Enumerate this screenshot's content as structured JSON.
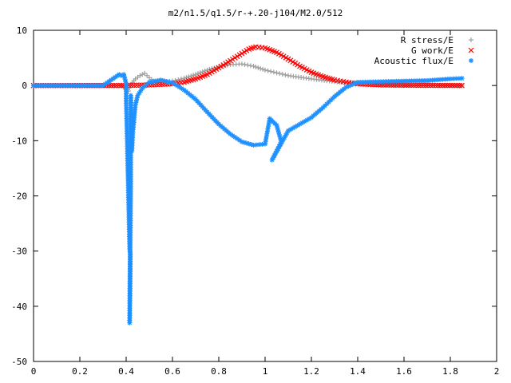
{
  "chart_data": {
    "type": "scatter",
    "title": "m2/n1.5/q1.5/r-+.20-j104/M2.0/512",
    "xlabel": "",
    "ylabel": "",
    "xlim": [
      0,
      2
    ],
    "ylim": [
      -50,
      10
    ],
    "x_ticks": [
      "0",
      "0.2",
      "0.4",
      "0.6",
      "0.8",
      "1",
      "1.2",
      "1.4",
      "1.6",
      "1.8",
      "2"
    ],
    "y_ticks": [
      "10",
      "0",
      "-10",
      "-20",
      "-30",
      "-40",
      "-50"
    ],
    "grid": false,
    "legend_position": "top-right",
    "series": [
      {
        "name": "R stress/E",
        "color": "#a0a0a0",
        "marker": "plus",
        "points": [
          [
            0.0,
            0.0
          ],
          [
            0.35,
            0.0
          ],
          [
            0.38,
            0.0
          ],
          [
            0.39,
            -0.4
          ],
          [
            0.4,
            -0.8
          ],
          [
            0.41,
            -1.0
          ],
          [
            0.42,
            0.2
          ],
          [
            0.44,
            1.2
          ],
          [
            0.46,
            1.8
          ],
          [
            0.48,
            2.2
          ],
          [
            0.5,
            1.4
          ],
          [
            0.52,
            0.8
          ],
          [
            0.55,
            0.6
          ],
          [
            0.6,
            0.8
          ],
          [
            0.65,
            1.3
          ],
          [
            0.7,
            2.0
          ],
          [
            0.75,
            2.8
          ],
          [
            0.8,
            3.4
          ],
          [
            0.85,
            3.8
          ],
          [
            0.9,
            3.9
          ],
          [
            0.95,
            3.5
          ],
          [
            1.0,
            2.8
          ],
          [
            1.05,
            2.3
          ],
          [
            1.1,
            1.8
          ],
          [
            1.2,
            1.2
          ],
          [
            1.3,
            0.7
          ],
          [
            1.4,
            0.4
          ],
          [
            1.5,
            0.2
          ],
          [
            1.6,
            0.1
          ],
          [
            1.7,
            0.05
          ],
          [
            1.85,
            0.0
          ]
        ]
      },
      {
        "name": "G work/E",
        "color": "#ff0000",
        "marker": "cross",
        "points": [
          [
            0.0,
            0.0
          ],
          [
            0.4,
            0.0
          ],
          [
            0.5,
            0.1
          ],
          [
            0.6,
            0.3
          ],
          [
            0.65,
            0.6
          ],
          [
            0.7,
            1.2
          ],
          [
            0.75,
            2.0
          ],
          [
            0.8,
            3.2
          ],
          [
            0.85,
            4.5
          ],
          [
            0.9,
            5.8
          ],
          [
            0.93,
            6.6
          ],
          [
            0.96,
            7.0
          ],
          [
            1.0,
            6.8
          ],
          [
            1.05,
            6.0
          ],
          [
            1.1,
            4.8
          ],
          [
            1.15,
            3.5
          ],
          [
            1.2,
            2.4
          ],
          [
            1.25,
            1.6
          ],
          [
            1.3,
            1.0
          ],
          [
            1.35,
            0.6
          ],
          [
            1.4,
            0.3
          ],
          [
            1.5,
            0.1
          ],
          [
            1.6,
            0.05
          ],
          [
            1.85,
            0.0
          ]
        ]
      },
      {
        "name": "Acoustic flux/E",
        "color": "#1e90ff",
        "marker": "star",
        "points": [
          [
            0.0,
            0.0
          ],
          [
            0.3,
            0.0
          ],
          [
            0.37,
            2.0
          ],
          [
            0.38,
            1.8
          ],
          [
            0.39,
            2.0
          ],
          [
            0.4,
            0.3
          ],
          [
            0.4,
            -2.8
          ],
          [
            0.405,
            -11.0
          ],
          [
            0.415,
            -29.6
          ],
          [
            0.418,
            -30.5
          ],
          [
            0.415,
            -43.0
          ],
          [
            0.42,
            -18.3
          ],
          [
            0.42,
            -1.8
          ],
          [
            0.425,
            -11.8
          ],
          [
            0.43,
            -8.0
          ],
          [
            0.435,
            -5.8
          ],
          [
            0.44,
            -3.5
          ],
          [
            0.45,
            -1.8
          ],
          [
            0.47,
            -0.5
          ],
          [
            0.5,
            0.6
          ],
          [
            0.55,
            1.0
          ],
          [
            0.6,
            0.5
          ],
          [
            0.65,
            -0.8
          ],
          [
            0.7,
            -2.5
          ],
          [
            0.75,
            -4.8
          ],
          [
            0.8,
            -7.0
          ],
          [
            0.85,
            -8.8
          ],
          [
            0.9,
            -10.2
          ],
          [
            0.95,
            -10.8
          ],
          [
            1.0,
            -10.6
          ],
          [
            1.02,
            -6.0
          ],
          [
            1.05,
            -7.2
          ],
          [
            1.07,
            -10.2
          ],
          [
            1.03,
            -13.5
          ],
          [
            1.1,
            -8.2
          ],
          [
            1.15,
            -7.0
          ],
          [
            1.2,
            -5.8
          ],
          [
            1.25,
            -4.0
          ],
          [
            1.3,
            -2.0
          ],
          [
            1.35,
            -0.3
          ],
          [
            1.4,
            0.6
          ],
          [
            1.5,
            0.7
          ],
          [
            1.6,
            0.8
          ],
          [
            1.7,
            0.9
          ],
          [
            1.8,
            1.2
          ],
          [
            1.85,
            1.3
          ]
        ]
      }
    ]
  }
}
